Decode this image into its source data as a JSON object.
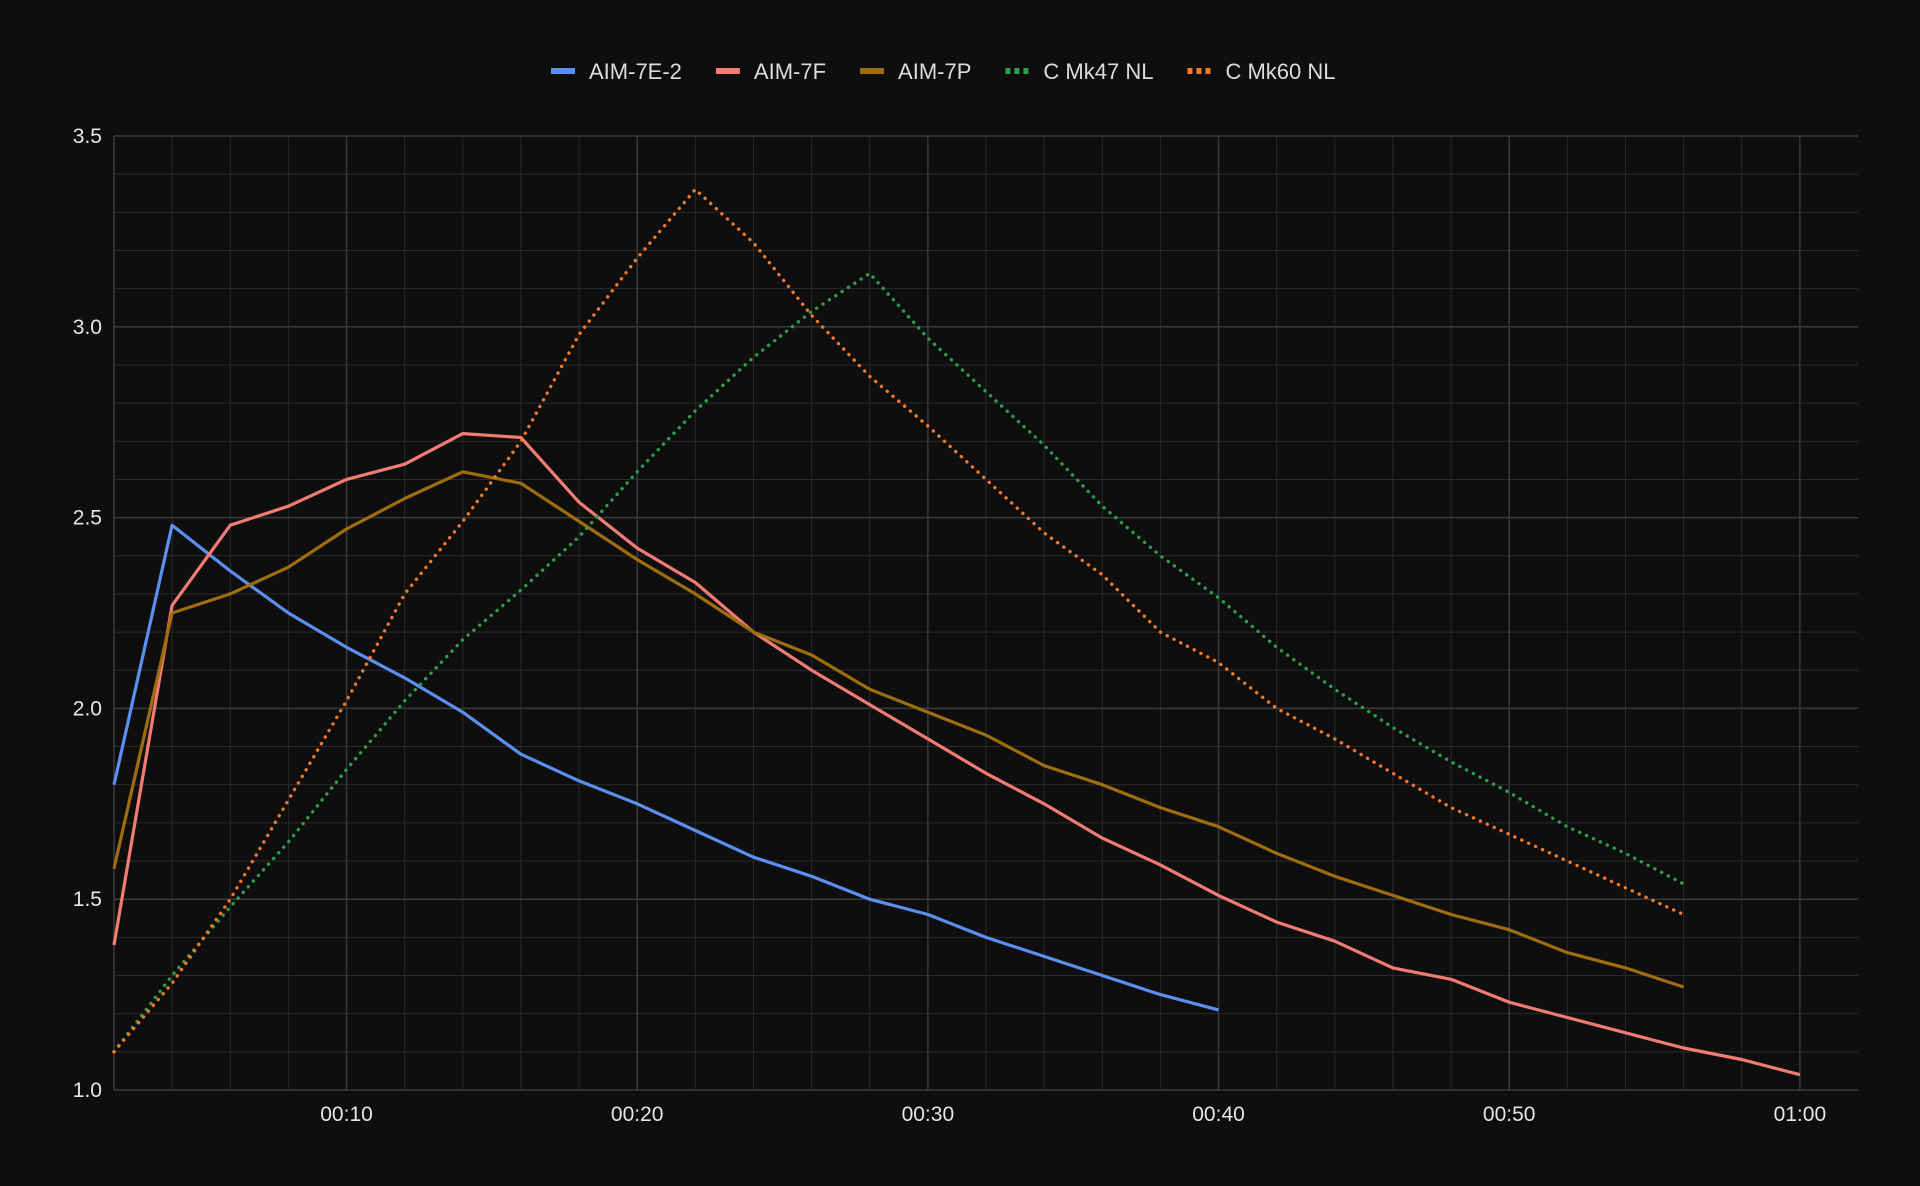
{
  "chart_data": {
    "type": "line",
    "title": "",
    "xlabel": "",
    "ylabel": "",
    "x_unit": "seconds",
    "xlim": [
      2,
      62
    ],
    "ylim": [
      1.0,
      3.5
    ],
    "x_ticks": [
      {
        "value": 10,
        "label": "00:10"
      },
      {
        "value": 20,
        "label": "00:20"
      },
      {
        "value": 30,
        "label": "00:30"
      },
      {
        "value": 40,
        "label": "00:40"
      },
      {
        "value": 50,
        "label": "00:50"
      },
      {
        "value": 60,
        "label": "01:00"
      }
    ],
    "y_ticks": [
      {
        "value": 1.0,
        "label": "1.0"
      },
      {
        "value": 1.5,
        "label": "1.5"
      },
      {
        "value": 2.0,
        "label": "2.0"
      },
      {
        "value": 2.5,
        "label": "2.5"
      },
      {
        "value": 3.0,
        "label": "3.0"
      },
      {
        "value": 3.5,
        "label": "3.5"
      }
    ],
    "grid": true,
    "legend_position": "top-center",
    "background_color": "#0e0e0e",
    "grid_color": "#3a3a3a",
    "series": [
      {
        "name": "AIM-7E-2",
        "color": "#5b8ff0",
        "style": "solid",
        "points": [
          [
            2,
            1.8
          ],
          [
            4,
            2.48
          ],
          [
            6,
            2.36
          ],
          [
            8,
            2.25
          ],
          [
            10,
            2.16
          ],
          [
            12,
            2.08
          ],
          [
            14,
            1.99
          ],
          [
            16,
            1.88
          ],
          [
            18,
            1.81
          ],
          [
            20,
            1.75
          ],
          [
            22,
            1.68
          ],
          [
            24,
            1.61
          ],
          [
            26,
            1.56
          ],
          [
            28,
            1.5
          ],
          [
            30,
            1.46
          ],
          [
            32,
            1.4
          ],
          [
            34,
            1.35
          ],
          [
            36,
            1.3
          ],
          [
            38,
            1.25
          ],
          [
            40,
            1.21
          ]
        ]
      },
      {
        "name": "AIM-7F",
        "color": "#f27c74",
        "style": "solid",
        "points": [
          [
            2,
            1.38
          ],
          [
            4,
            2.27
          ],
          [
            6,
            2.48
          ],
          [
            8,
            2.53
          ],
          [
            10,
            2.6
          ],
          [
            12,
            2.64
          ],
          [
            14,
            2.72
          ],
          [
            16,
            2.71
          ],
          [
            18,
            2.54
          ],
          [
            20,
            2.42
          ],
          [
            22,
            2.33
          ],
          [
            24,
            2.2
          ],
          [
            26,
            2.1
          ],
          [
            28,
            2.01
          ],
          [
            30,
            1.92
          ],
          [
            32,
            1.83
          ],
          [
            34,
            1.75
          ],
          [
            36,
            1.66
          ],
          [
            38,
            1.59
          ],
          [
            40,
            1.51
          ],
          [
            42,
            1.44
          ],
          [
            44,
            1.39
          ],
          [
            46,
            1.32
          ],
          [
            48,
            1.29
          ],
          [
            50,
            1.23
          ],
          [
            52,
            1.19
          ],
          [
            54,
            1.15
          ],
          [
            56,
            1.11
          ],
          [
            58,
            1.08
          ],
          [
            60,
            1.04
          ]
        ]
      },
      {
        "name": "AIM-7P",
        "color": "#9e6d10",
        "style": "solid",
        "points": [
          [
            2,
            1.58
          ],
          [
            4,
            2.25
          ],
          [
            6,
            2.3
          ],
          [
            8,
            2.37
          ],
          [
            10,
            2.47
          ],
          [
            12,
            2.55
          ],
          [
            14,
            2.62
          ],
          [
            16,
            2.59
          ],
          [
            18,
            2.49
          ],
          [
            20,
            2.39
          ],
          [
            22,
            2.3
          ],
          [
            24,
            2.2
          ],
          [
            26,
            2.14
          ],
          [
            28,
            2.05
          ],
          [
            30,
            1.99
          ],
          [
            32,
            1.93
          ],
          [
            34,
            1.85
          ],
          [
            36,
            1.8
          ],
          [
            38,
            1.74
          ],
          [
            40,
            1.69
          ],
          [
            42,
            1.62
          ],
          [
            44,
            1.56
          ],
          [
            46,
            1.51
          ],
          [
            48,
            1.46
          ],
          [
            50,
            1.42
          ],
          [
            52,
            1.36
          ],
          [
            54,
            1.32
          ],
          [
            56,
            1.27
          ]
        ]
      },
      {
        "name": "C Mk47 NL",
        "color": "#2f9e48",
        "style": "dotted",
        "points": [
          [
            2,
            1.1
          ],
          [
            4,
            1.3
          ],
          [
            6,
            1.48
          ],
          [
            8,
            1.65
          ],
          [
            10,
            1.84
          ],
          [
            12,
            2.02
          ],
          [
            14,
            2.18
          ],
          [
            16,
            2.31
          ],
          [
            18,
            2.45
          ],
          [
            20,
            2.62
          ],
          [
            22,
            2.78
          ],
          [
            24,
            2.92
          ],
          [
            26,
            3.04
          ],
          [
            28,
            3.14
          ],
          [
            30,
            2.97
          ],
          [
            32,
            2.83
          ],
          [
            34,
            2.69
          ],
          [
            36,
            2.53
          ],
          [
            38,
            2.4
          ],
          [
            40,
            2.29
          ],
          [
            42,
            2.16
          ],
          [
            44,
            2.05
          ],
          [
            46,
            1.95
          ],
          [
            48,
            1.86
          ],
          [
            50,
            1.78
          ],
          [
            52,
            1.69
          ],
          [
            54,
            1.62
          ],
          [
            56,
            1.54
          ]
        ]
      },
      {
        "name": "C Mk60 NL",
        "color": "#f07a2a",
        "style": "dotted",
        "points": [
          [
            2,
            1.1
          ],
          [
            4,
            1.28
          ],
          [
            6,
            1.5
          ],
          [
            8,
            1.76
          ],
          [
            10,
            2.02
          ],
          [
            12,
            2.3
          ],
          [
            14,
            2.49
          ],
          [
            16,
            2.7
          ],
          [
            18,
            2.98
          ],
          [
            20,
            3.18
          ],
          [
            22,
            3.36
          ],
          [
            24,
            3.22
          ],
          [
            26,
            3.03
          ],
          [
            28,
            2.87
          ],
          [
            30,
            2.74
          ],
          [
            32,
            2.6
          ],
          [
            34,
            2.46
          ],
          [
            36,
            2.35
          ],
          [
            38,
            2.2
          ],
          [
            40,
            2.12
          ],
          [
            42,
            2.0
          ],
          [
            44,
            1.92
          ],
          [
            46,
            1.83
          ],
          [
            48,
            1.74
          ],
          [
            50,
            1.67
          ],
          [
            52,
            1.6
          ],
          [
            54,
            1.53
          ],
          [
            56,
            1.46
          ]
        ]
      }
    ]
  }
}
